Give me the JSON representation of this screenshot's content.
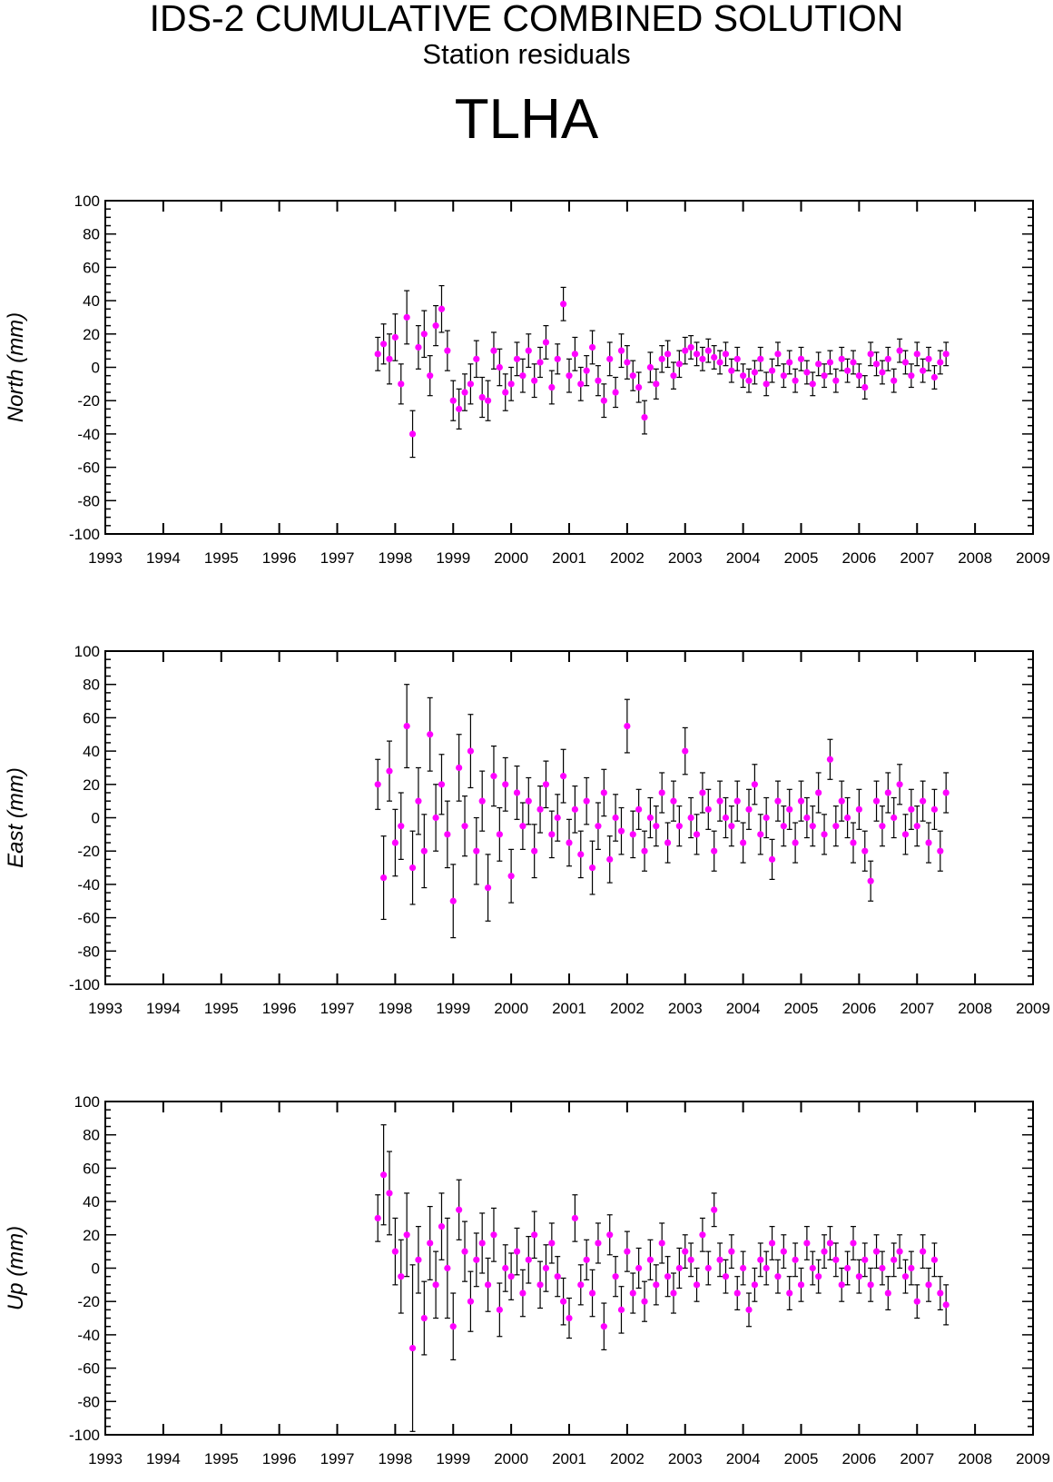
{
  "title": "IDS-2 CUMULATIVE COMBINED SOLUTION",
  "subtitle": "Station residuals",
  "station": "TLHA",
  "colors": {
    "point": "#ff00ff",
    "errorbar": "#000000",
    "axis": "#000000"
  },
  "chart_data": [
    {
      "type": "scatter",
      "ylabel": "North (mm)",
      "xlim": [
        1993,
        2009
      ],
      "ylim": [
        -100,
        100
      ],
      "x_ticks": [
        "1993",
        "1994",
        "1995",
        "1996",
        "1997",
        "1998",
        "1999",
        "2000",
        "2001",
        "2002",
        "2003",
        "2004",
        "2005",
        "2006",
        "2007",
        "2008",
        "2009"
      ],
      "y_ticks": [
        "100",
        "80",
        "60",
        "40",
        "20",
        "0",
        "-20",
        "-40",
        "-60",
        "-80",
        "-100"
      ],
      "grid": false,
      "error_bars": true,
      "series": [
        {
          "x": [
            1997.7,
            1997.8,
            1997.9,
            1998.0,
            1998.1,
            1998.2,
            1998.3,
            1998.4,
            1998.5,
            1998.6,
            1998.7,
            1998.8,
            1998.9,
            1999.0,
            1999.1,
            1999.2,
            1999.3,
            1999.4,
            1999.5,
            1999.6,
            1999.7,
            1999.8,
            1999.9,
            2000.0,
            2000.1,
            2000.2,
            2000.3,
            2000.4,
            2000.5,
            2000.6,
            2000.7,
            2000.8,
            2000.9,
            2001.0,
            2001.1,
            2001.2,
            2001.3,
            2001.4,
            2001.5,
            2001.6,
            2001.7,
            2001.8,
            2001.9,
            2002.0,
            2002.1,
            2002.2,
            2002.3,
            2002.4,
            2002.5,
            2002.6,
            2002.7,
            2002.8,
            2002.9,
            2003.0,
            2003.1,
            2003.2,
            2003.3,
            2003.4,
            2003.5,
            2003.6,
            2003.7,
            2003.8,
            2003.9,
            2004.0,
            2004.1,
            2004.2,
            2004.3,
            2004.4,
            2004.5,
            2004.6,
            2004.7,
            2004.8,
            2004.9,
            2005.0,
            2005.1,
            2005.2,
            2005.3,
            2005.4,
            2005.5,
            2005.6,
            2005.7,
            2005.8,
            2005.9,
            2006.0,
            2006.1,
            2006.2,
            2006.3,
            2006.4,
            2006.5,
            2006.6,
            2006.7,
            2006.8,
            2006.9,
            2007.0,
            2007.1,
            2007.2,
            2007.3,
            2007.4,
            2007.5
          ],
          "y": [
            8,
            14,
            5,
            18,
            -10,
            30,
            -40,
            12,
            20,
            -5,
            25,
            35,
            10,
            -20,
            -25,
            -15,
            -10,
            5,
            -18,
            -20,
            10,
            0,
            -15,
            -10,
            5,
            -5,
            10,
            -8,
            3,
            15,
            -12,
            5,
            38,
            -5,
            8,
            -10,
            -2,
            12,
            -8,
            -20,
            5,
            -15,
            10,
            3,
            -5,
            -12,
            -30,
            0,
            -10,
            5,
            8,
            -5,
            2,
            10,
            12,
            8,
            5,
            10,
            6,
            3,
            8,
            -2,
            5,
            -5,
            -8,
            -3,
            5,
            -10,
            -2,
            8,
            -5,
            3,
            -8,
            5,
            -3,
            -10,
            2,
            -5,
            3,
            -8,
            5,
            -2,
            3,
            -5,
            -12,
            8,
            2,
            -3,
            5,
            -8,
            10,
            3,
            -5,
            8,
            -2,
            5,
            -6,
            3,
            8
          ],
          "err": [
            10,
            12,
            15,
            14,
            12,
            16,
            14,
            13,
            14,
            12,
            12,
            14,
            12,
            12,
            12,
            11,
            12,
            11,
            12,
            12,
            11,
            11,
            11,
            10,
            10,
            10,
            10,
            10,
            9,
            10,
            10,
            9,
            10,
            10,
            10,
            10,
            9,
            10,
            9,
            10,
            10,
            9,
            10,
            10,
            9,
            9,
            10,
            9,
            9,
            8,
            8,
            8,
            8,
            8,
            7,
            7,
            7,
            7,
            7,
            7,
            7,
            7,
            7,
            7,
            7,
            7,
            7,
            7,
            7,
            7,
            7,
            7,
            7,
            7,
            7,
            7,
            7,
            7,
            7,
            7,
            7,
            7,
            7,
            7,
            7,
            7,
            7,
            7,
            7,
            7,
            7,
            7,
            7,
            7,
            7,
            7,
            7,
            7,
            7
          ]
        }
      ]
    },
    {
      "type": "scatter",
      "ylabel": "East (mm)",
      "xlim": [
        1993,
        2009
      ],
      "ylim": [
        -100,
        100
      ],
      "x_ticks": [
        "1993",
        "1994",
        "1995",
        "1996",
        "1997",
        "1998",
        "1999",
        "2000",
        "2001",
        "2002",
        "2003",
        "2004",
        "2005",
        "2006",
        "2007",
        "2008",
        "2009"
      ],
      "y_ticks": [
        "100",
        "80",
        "60",
        "40",
        "20",
        "0",
        "-20",
        "-40",
        "-60",
        "-80",
        "-100"
      ],
      "grid": false,
      "error_bars": true,
      "series": [
        {
          "x": [
            1997.7,
            1997.8,
            1997.9,
            1998.0,
            1998.1,
            1998.2,
            1998.3,
            1998.4,
            1998.5,
            1998.6,
            1998.7,
            1998.8,
            1998.9,
            1999.0,
            1999.1,
            1999.2,
            1999.3,
            1999.4,
            1999.5,
            1999.6,
            1999.7,
            1999.8,
            1999.9,
            2000.0,
            2000.1,
            2000.2,
            2000.3,
            2000.4,
            2000.5,
            2000.6,
            2000.7,
            2000.8,
            2000.9,
            2001.0,
            2001.1,
            2001.2,
            2001.3,
            2001.4,
            2001.5,
            2001.6,
            2001.7,
            2001.8,
            2001.9,
            2002.0,
            2002.1,
            2002.2,
            2002.3,
            2002.4,
            2002.5,
            2002.6,
            2002.7,
            2002.8,
            2002.9,
            2003.0,
            2003.1,
            2003.2,
            2003.3,
            2003.4,
            2003.5,
            2003.6,
            2003.7,
            2003.8,
            2003.9,
            2004.0,
            2004.1,
            2004.2,
            2004.3,
            2004.4,
            2004.5,
            2004.6,
            2004.7,
            2004.8,
            2004.9,
            2005.0,
            2005.1,
            2005.2,
            2005.3,
            2005.4,
            2005.5,
            2005.6,
            2005.7,
            2005.8,
            2005.9,
            2006.0,
            2006.1,
            2006.2,
            2006.3,
            2006.4,
            2006.5,
            2006.6,
            2006.7,
            2006.8,
            2006.9,
            2007.0,
            2007.1,
            2007.2,
            2007.3,
            2007.4,
            2007.5
          ],
          "y": [
            20,
            -36,
            28,
            -15,
            -5,
            55,
            -30,
            10,
            -20,
            50,
            0,
            20,
            -10,
            -50,
            30,
            -5,
            40,
            -20,
            10,
            -42,
            25,
            -10,
            20,
            -35,
            15,
            -5,
            10,
            -20,
            5,
            20,
            -10,
            0,
            25,
            -15,
            5,
            -22,
            10,
            -30,
            -5,
            15,
            -25,
            0,
            -8,
            55,
            -10,
            5,
            -20,
            0,
            -5,
            15,
            -15,
            10,
            -5,
            40,
            0,
            -10,
            15,
            5,
            -20,
            10,
            0,
            -5,
            10,
            -15,
            5,
            20,
            -10,
            0,
            -25,
            10,
            -5,
            5,
            -15,
            10,
            0,
            -5,
            15,
            -10,
            35,
            -5,
            10,
            0,
            -15,
            5,
            -20,
            -38,
            10,
            -5,
            15,
            0,
            20,
            -10,
            5,
            -5,
            10,
            -15,
            5,
            -20,
            15
          ],
          "err": [
            15,
            25,
            18,
            20,
            20,
            25,
            22,
            20,
            22,
            22,
            20,
            18,
            20,
            22,
            20,
            18,
            22,
            20,
            18,
            20,
            18,
            16,
            16,
            16,
            16,
            14,
            14,
            16,
            14,
            14,
            14,
            14,
            16,
            14,
            14,
            14,
            14,
            16,
            14,
            14,
            14,
            14,
            14,
            16,
            14,
            12,
            12,
            12,
            12,
            12,
            12,
            12,
            12,
            14,
            12,
            12,
            12,
            12,
            12,
            12,
            12,
            12,
            12,
            12,
            12,
            12,
            12,
            12,
            12,
            12,
            12,
            12,
            12,
            12,
            12,
            12,
            12,
            12,
            12,
            12,
            12,
            12,
            12,
            12,
            12,
            12,
            12,
            12,
            12,
            12,
            12,
            12,
            12,
            12,
            12,
            12,
            12,
            12,
            12
          ]
        }
      ]
    },
    {
      "type": "scatter",
      "ylabel": "Up (mm)",
      "xlim": [
        1993,
        2009
      ],
      "ylim": [
        -100,
        100
      ],
      "x_ticks": [
        "1993",
        "1994",
        "1995",
        "1996",
        "1997",
        "1998",
        "1999",
        "2000",
        "2001",
        "2002",
        "2003",
        "2004",
        "2005",
        "2006",
        "2007",
        "2008",
        "2009"
      ],
      "y_ticks": [
        "100",
        "80",
        "60",
        "40",
        "20",
        "0",
        "-20",
        "-40",
        "-60",
        "-80",
        "-100"
      ],
      "grid": false,
      "error_bars": true,
      "series": [
        {
          "x": [
            1997.7,
            1997.8,
            1997.9,
            1998.0,
            1998.1,
            1998.2,
            1998.3,
            1998.4,
            1998.5,
            1998.6,
            1998.7,
            1998.8,
            1998.9,
            1999.0,
            1999.1,
            1999.2,
            1999.3,
            1999.4,
            1999.5,
            1999.6,
            1999.7,
            1999.8,
            1999.9,
            2000.0,
            2000.1,
            2000.2,
            2000.3,
            2000.4,
            2000.5,
            2000.6,
            2000.7,
            2000.8,
            2000.9,
            2001.0,
            2001.1,
            2001.2,
            2001.3,
            2001.4,
            2001.5,
            2001.6,
            2001.7,
            2001.8,
            2001.9,
            2002.0,
            2002.1,
            2002.2,
            2002.3,
            2002.4,
            2002.5,
            2002.6,
            2002.7,
            2002.8,
            2002.9,
            2003.0,
            2003.1,
            2003.2,
            2003.3,
            2003.4,
            2003.5,
            2003.6,
            2003.7,
            2003.8,
            2003.9,
            2004.0,
            2004.1,
            2004.2,
            2004.3,
            2004.4,
            2004.5,
            2004.6,
            2004.7,
            2004.8,
            2004.9,
            2005.0,
            2005.1,
            2005.2,
            2005.3,
            2005.4,
            2005.5,
            2005.6,
            2005.7,
            2005.8,
            2005.9,
            2006.0,
            2006.1,
            2006.2,
            2006.3,
            2006.4,
            2006.5,
            2006.6,
            2006.7,
            2006.8,
            2006.9,
            2007.0,
            2007.1,
            2007.2,
            2007.3,
            2007.4,
            2007.5
          ],
          "y": [
            30,
            56,
            45,
            10,
            -5,
            20,
            -48,
            5,
            -30,
            15,
            -10,
            25,
            0,
            -35,
            35,
            10,
            -20,
            5,
            15,
            -10,
            20,
            -25,
            0,
            -5,
            10,
            -15,
            5,
            20,
            -10,
            0,
            15,
            -5,
            -20,
            -30,
            30,
            -10,
            5,
            -15,
            15,
            -35,
            20,
            -5,
            -25,
            10,
            -15,
            0,
            -20,
            5,
            -10,
            15,
            -5,
            -15,
            0,
            10,
            5,
            -10,
            20,
            0,
            35,
            5,
            -5,
            10,
            -15,
            0,
            -25,
            -10,
            5,
            0,
            15,
            -5,
            10,
            -15,
            5,
            -10,
            15,
            0,
            -5,
            10,
            15,
            5,
            -10,
            0,
            15,
            -5,
            5,
            -10,
            10,
            0,
            -15,
            5,
            10,
            -5,
            0,
            -20,
            10,
            -10,
            5,
            -15,
            -22
          ],
          "err": [
            14,
            30,
            25,
            20,
            22,
            25,
            50,
            20,
            22,
            22,
            20,
            20,
            30,
            20,
            18,
            18,
            18,
            16,
            18,
            16,
            16,
            16,
            14,
            14,
            14,
            14,
            14,
            14,
            14,
            14,
            12,
            12,
            14,
            12,
            14,
            12,
            12,
            14,
            12,
            14,
            12,
            12,
            14,
            12,
            12,
            12,
            12,
            12,
            12,
            12,
            12,
            12,
            12,
            10,
            10,
            10,
            10,
            10,
            10,
            10,
            10,
            10,
            10,
            10,
            10,
            10,
            10,
            10,
            10,
            10,
            10,
            10,
            10,
            10,
            10,
            10,
            10,
            10,
            10,
            10,
            10,
            10,
            10,
            10,
            10,
            10,
            10,
            10,
            10,
            10,
            10,
            10,
            10,
            10,
            10,
            10,
            10,
            10,
            12
          ]
        }
      ]
    }
  ]
}
